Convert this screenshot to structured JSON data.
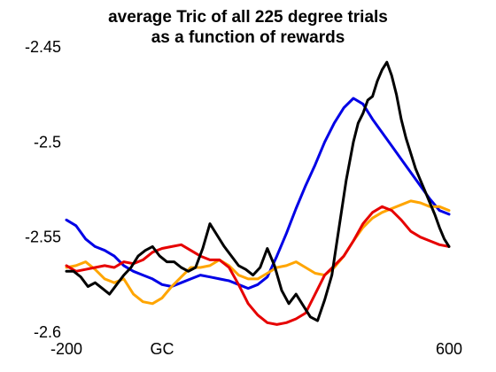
{
  "chart_data": {
    "type": "line",
    "title_lines": [
      "average Tric of all 225 degree trials",
      "as a function of rewards"
    ],
    "xlabel": "",
    "ylabel": "",
    "xlim": [
      -200,
      600
    ],
    "ylim": [
      -2.6,
      -2.45
    ],
    "x_ticks": [
      {
        "value": -200,
        "label": "-200"
      },
      {
        "value": 0,
        "label": "GC"
      },
      {
        "value": 600,
        "label": "600"
      }
    ],
    "y_ticks": [
      {
        "value": -2.45,
        "label": "-2.45"
      },
      {
        "value": -2.5,
        "label": "-2.5"
      },
      {
        "value": -2.55,
        "label": "-2.55"
      },
      {
        "value": -2.6,
        "label": "-2.6"
      }
    ],
    "grid": false,
    "legend": "none",
    "series": [
      {
        "color": "#0000e6",
        "x": [
          -200,
          -180,
          -160,
          -140,
          -120,
          -100,
          -80,
          -60,
          -40,
          -20,
          0,
          20,
          40,
          60,
          80,
          100,
          120,
          140,
          160,
          180,
          200,
          220,
          240,
          260,
          280,
          300,
          320,
          340,
          360,
          380,
          400,
          420,
          440,
          460,
          480,
          500,
          520,
          540,
          560,
          580,
          600
        ],
        "y": [
          -2.541,
          -2.544,
          -2.551,
          -2.555,
          -2.557,
          -2.56,
          -2.565,
          -2.568,
          -2.57,
          -2.572,
          -2.575,
          -2.576,
          -2.574,
          -2.572,
          -2.57,
          -2.571,
          -2.572,
          -2.573,
          -2.575,
          -2.577,
          -2.575,
          -2.571,
          -2.56,
          -2.548,
          -2.535,
          -2.523,
          -2.512,
          -2.5,
          -2.49,
          -2.482,
          -2.477,
          -2.48,
          -2.488,
          -2.495,
          -2.502,
          -2.509,
          -2.516,
          -2.523,
          -2.53,
          -2.536,
          -2.538
        ]
      },
      {
        "color": "#ffa500",
        "x": [
          -200,
          -180,
          -160,
          -140,
          -120,
          -100,
          -80,
          -60,
          -40,
          -20,
          0,
          20,
          40,
          60,
          80,
          100,
          120,
          140,
          160,
          180,
          200,
          220,
          240,
          260,
          280,
          300,
          320,
          340,
          360,
          380,
          400,
          420,
          440,
          460,
          480,
          500,
          520,
          540,
          560,
          580,
          600
        ],
        "y": [
          -2.566,
          -2.565,
          -2.563,
          -2.567,
          -2.572,
          -2.574,
          -2.572,
          -2.58,
          -2.584,
          -2.585,
          -2.582,
          -2.576,
          -2.571,
          -2.566,
          -2.566,
          -2.565,
          -2.562,
          -2.565,
          -2.57,
          -2.572,
          -2.572,
          -2.569,
          -2.566,
          -2.565,
          -2.563,
          -2.566,
          -2.569,
          -2.57,
          -2.566,
          -2.56,
          -2.552,
          -2.545,
          -2.54,
          -2.537,
          -2.535,
          -2.533,
          -2.531,
          -2.532,
          -2.534,
          -2.534,
          -2.536
        ]
      },
      {
        "color": "#e60000",
        "x": [
          -200,
          -180,
          -160,
          -140,
          -120,
          -100,
          -80,
          -60,
          -40,
          -20,
          0,
          20,
          40,
          60,
          80,
          100,
          120,
          140,
          160,
          180,
          200,
          220,
          240,
          260,
          280,
          300,
          320,
          340,
          360,
          380,
          400,
          420,
          440,
          460,
          480,
          500,
          520,
          540,
          560,
          580,
          600
        ],
        "y": [
          -2.565,
          -2.568,
          -2.567,
          -2.566,
          -2.565,
          -2.566,
          -2.563,
          -2.564,
          -2.562,
          -2.558,
          -2.556,
          -2.555,
          -2.554,
          -2.557,
          -2.56,
          -2.562,
          -2.562,
          -2.566,
          -2.575,
          -2.585,
          -2.591,
          -2.595,
          -2.596,
          -2.595,
          -2.593,
          -2.59,
          -2.58,
          -2.57,
          -2.565,
          -2.56,
          -2.552,
          -2.543,
          -2.537,
          -2.534,
          -2.536,
          -2.541,
          -2.547,
          -2.55,
          -2.552,
          -2.554,
          -2.555
        ]
      },
      {
        "color": "#000000",
        "x": [
          -200,
          -185,
          -170,
          -155,
          -140,
          -125,
          -110,
          -95,
          -80,
          -65,
          -50,
          -35,
          -20,
          -5,
          10,
          25,
          40,
          55,
          70,
          85,
          100,
          115,
          130,
          145,
          160,
          175,
          190,
          205,
          220,
          235,
          250,
          265,
          280,
          295,
          310,
          325,
          340,
          355,
          370,
          385,
          400,
          410,
          420,
          430,
          440,
          450,
          460,
          470,
          480,
          490,
          500,
          510,
          520,
          530,
          540,
          550,
          560,
          570,
          580,
          590,
          600
        ],
        "y": [
          -2.568,
          -2.568,
          -2.571,
          -2.576,
          -2.574,
          -2.577,
          -2.58,
          -2.575,
          -2.57,
          -2.566,
          -2.56,
          -2.557,
          -2.555,
          -2.56,
          -2.563,
          -2.563,
          -2.566,
          -2.568,
          -2.566,
          -2.556,
          -2.543,
          -2.549,
          -2.555,
          -2.56,
          -2.565,
          -2.567,
          -2.57,
          -2.566,
          -2.556,
          -2.565,
          -2.578,
          -2.585,
          -2.58,
          -2.586,
          -2.592,
          -2.594,
          -2.583,
          -2.57,
          -2.545,
          -2.52,
          -2.5,
          -2.49,
          -2.485,
          -2.478,
          -2.476,
          -2.468,
          -2.462,
          -2.458,
          -2.465,
          -2.475,
          -2.488,
          -2.498,
          -2.506,
          -2.514,
          -2.52,
          -2.526,
          -2.532,
          -2.538,
          -2.545,
          -2.551,
          -2.555
        ]
      }
    ]
  }
}
